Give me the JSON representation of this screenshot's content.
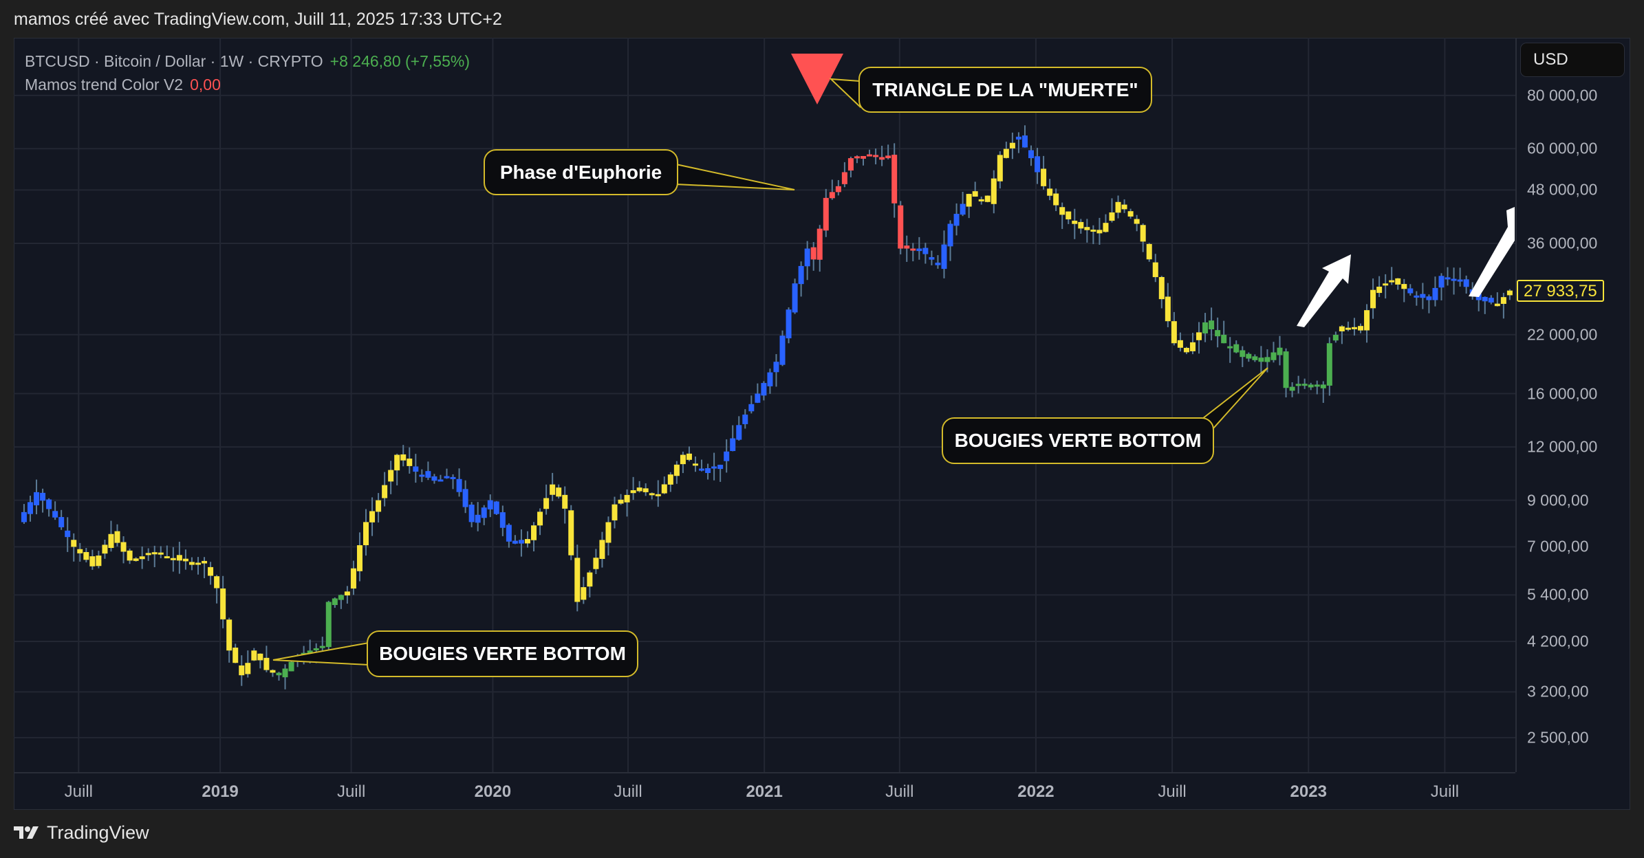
{
  "header": {
    "attribution": "mamos créé avec TradingView.com, Juill 11, 2025 17:33 UTC+2"
  },
  "legend": {
    "symbol_line": "BTCUSD · Bitcoin / Dollar · 1W · CRYPTO",
    "change": "+8 246,80 (+7,55%)",
    "indicator_name": "Mamos trend Color V2",
    "indicator_value": "0,00"
  },
  "price_axis": {
    "currency": "USD",
    "last_price": "27 933,75",
    "ticks": [
      "80 000,00",
      "60 000,00",
      "48 000,00",
      "36 000,00",
      "22 000,00",
      "16 000,00",
      "12 000,00",
      "9 000,00",
      "7 000,00",
      "5 400,00",
      "4 200,00",
      "3 200,00",
      "2 500,00"
    ]
  },
  "time_axis": {
    "ticks": [
      {
        "label": "Juill",
        "year": false
      },
      {
        "label": "2019",
        "year": true
      },
      {
        "label": "Juill",
        "year": false
      },
      {
        "label": "2020",
        "year": true
      },
      {
        "label": "Juill",
        "year": false
      },
      {
        "label": "2021",
        "year": true
      },
      {
        "label": "Juill",
        "year": false
      },
      {
        "label": "2022",
        "year": true
      },
      {
        "label": "Juill",
        "year": false
      },
      {
        "label": "2023",
        "year": true
      },
      {
        "label": "Juill",
        "year": false
      }
    ]
  },
  "annotations": {
    "triangle": "TRIANGLE DE LA \"MUERTE\"",
    "euphoria": "Phase d'Euphorie",
    "bottom1": "BOUGIES VERTE BOTTOM",
    "bottom2": "BOUGIES VERTE BOTTOM"
  },
  "footer": {
    "brand": "TradingView"
  },
  "colors": {
    "yellow": "#f9e43a",
    "blue": "#2962ff",
    "red": "#ff5252",
    "green": "#4caf50",
    "wick": "#5b7b96",
    "bg": "#131722",
    "grid": "#232733"
  },
  "chart_data": {
    "type": "candlestick",
    "title": "BTCUSD · Bitcoin / Dollar · 1W · CRYPTO",
    "xlabel": "",
    "ylabel": "USD",
    "yscale": "log",
    "ylim": [
      2200,
      95000
    ],
    "x_range": [
      "2018-04",
      "2023-09"
    ],
    "legend": [
      "Mamos trend Color V2"
    ],
    "annotations": [
      "TRIANGLE DE LA \"MUERTE\"",
      "Phase d'Euphorie",
      "BOUGIES VERTE BOTTOM",
      "BOUGIES VERTE BOTTOM"
    ],
    "color_key": {
      "Y": "yellow",
      "B": "blue",
      "R": "red",
      "G": "green"
    },
    "weekly_close_path": [
      [
        0,
        8000,
        "B"
      ],
      [
        3,
        9400,
        "B"
      ],
      [
        6,
        8200,
        "B"
      ],
      [
        9,
        7000,
        "Y"
      ],
      [
        12,
        6300,
        "Y"
      ],
      [
        15,
        7500,
        "Y"
      ],
      [
        18,
        6500,
        "Y"
      ],
      [
        22,
        6800,
        "Y"
      ],
      [
        26,
        6500,
        "Y"
      ],
      [
        30,
        6400,
        "Y"
      ],
      [
        32,
        5600,
        "Y"
      ],
      [
        34,
        4000,
        "Y"
      ],
      [
        36,
        3500,
        "Y"
      ],
      [
        38,
        4000,
        "Y"
      ],
      [
        40,
        3600,
        "Y"
      ],
      [
        42,
        3500,
        "G"
      ],
      [
        45,
        3900,
        "G"
      ],
      [
        49,
        4100,
        "G"
      ],
      [
        50,
        5200,
        "G"
      ],
      [
        53,
        5500,
        "Y"
      ],
      [
        56,
        8000,
        "Y"
      ],
      [
        58,
        9000,
        "Y"
      ],
      [
        61,
        11500,
        "Y"
      ],
      [
        64,
        10500,
        "B"
      ],
      [
        67,
        10000,
        "B"
      ],
      [
        70,
        10200,
        "B"
      ],
      [
        73,
        8000,
        "B"
      ],
      [
        76,
        9000,
        "B"
      ],
      [
        79,
        7200,
        "B"
      ],
      [
        82,
        7300,
        "Y"
      ],
      [
        86,
        9800,
        "Y"
      ],
      [
        88,
        8600,
        "Y"
      ],
      [
        90,
        5200,
        "Y"
      ],
      [
        93,
        6600,
        "Y"
      ],
      [
        96,
        8800,
        "Y"
      ],
      [
        99,
        9500,
        "Y"
      ],
      [
        103,
        9300,
        "Y"
      ],
      [
        107,
        11500,
        "Y"
      ],
      [
        110,
        10600,
        "B"
      ],
      [
        113,
        10900,
        "B"
      ],
      [
        116,
        13500,
        "B"
      ],
      [
        119,
        16000,
        "B"
      ],
      [
        122,
        19000,
        "B"
      ],
      [
        125,
        29000,
        "B"
      ],
      [
        127,
        35000,
        "B"
      ],
      [
        128,
        33000,
        "R"
      ],
      [
        130,
        46000,
        "R"
      ],
      [
        132,
        49000,
        "R"
      ],
      [
        134,
        57000,
        "R"
      ],
      [
        137,
        58000,
        "R"
      ],
      [
        140,
        57000,
        "R"
      ],
      [
        142,
        35000,
        "R"
      ],
      [
        145,
        35000,
        "B"
      ],
      [
        148,
        32000,
        "B"
      ],
      [
        150,
        40000,
        "B"
      ],
      [
        153,
        47000,
        "Y"
      ],
      [
        156,
        45000,
        "Y"
      ],
      [
        158,
        58000,
        "Y"
      ],
      [
        161,
        64000,
        "B"
      ],
      [
        163,
        57000,
        "B"
      ],
      [
        165,
        49000,
        "Y"
      ],
      [
        168,
        42000,
        "Y"
      ],
      [
        171,
        39000,
        "Y"
      ],
      [
        174,
        38000,
        "Y"
      ],
      [
        177,
        45000,
        "Y"
      ],
      [
        180,
        40000,
        "Y"
      ],
      [
        183,
        30000,
        "Y"
      ],
      [
        186,
        21000,
        "Y"
      ],
      [
        188,
        20000,
        "Y"
      ],
      [
        191,
        23500,
        "G"
      ],
      [
        194,
        21000,
        "G"
      ],
      [
        197,
        19500,
        "G"
      ],
      [
        200,
        19000,
        "G"
      ],
      [
        203,
        20500,
        "G"
      ],
      [
        204,
        16500,
        "G"
      ],
      [
        207,
        16800,
        "G"
      ],
      [
        210,
        16800,
        "G"
      ],
      [
        211,
        21000,
        "G"
      ],
      [
        213,
        23000,
        "Y"
      ],
      [
        216,
        22500,
        "Y"
      ],
      [
        218,
        28000,
        "Y"
      ],
      [
        221,
        29500,
        "Y"
      ],
      [
        224,
        27500,
        "B"
      ],
      [
        227,
        26500,
        "B"
      ],
      [
        229,
        30200,
        "B"
      ],
      [
        232,
        29500,
        "B"
      ],
      [
        235,
        26500,
        "B"
      ],
      [
        238,
        26000,
        "Y"
      ],
      [
        240,
        27900,
        "Y"
      ]
    ]
  }
}
